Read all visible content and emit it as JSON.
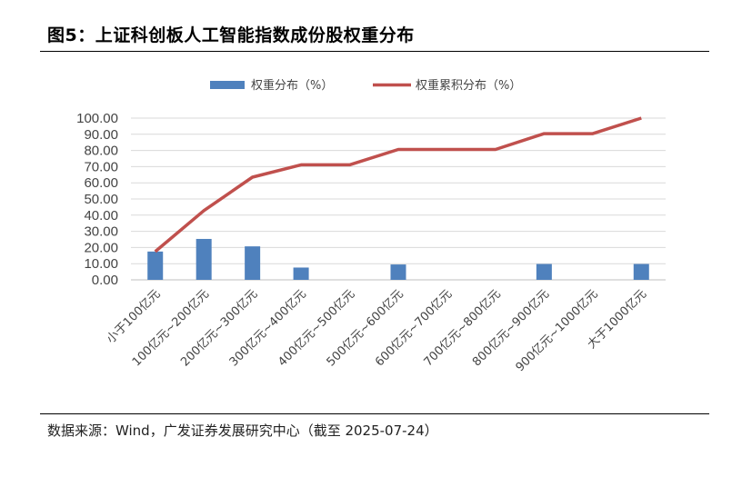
{
  "page": {
    "title": "图5：上证科创板人工智能指数成份股权重分布",
    "source": "数据来源：Wind，广发证券发展研究中心（截至 2025-07-24）"
  },
  "chart_data": {
    "type": "bar",
    "categories": [
      "小于100亿元",
      "100亿元~200亿元",
      "200亿元~300亿元",
      "300亿元~400亿元",
      "400亿元~500亿元",
      "500亿元~600亿元",
      "600亿元~700亿元",
      "700亿元~800亿元",
      "800亿元~900亿元",
      "900亿元~1000亿元",
      "大于1000亿元"
    ],
    "series": [
      {
        "name": "权重分布（%）",
        "type": "bar",
        "color": "#4F81BD",
        "values": [
          17.5,
          25.3,
          20.7,
          7.6,
          0,
          9.5,
          0,
          0,
          9.8,
          0,
          9.8
        ]
      },
      {
        "name": "权重累积分布（%）",
        "type": "line",
        "color": "#C0504D",
        "values": [
          17.5,
          42.8,
          63.5,
          71.1,
          71.1,
          80.6,
          80.6,
          80.6,
          90.4,
          90.4,
          100.0
        ]
      }
    ],
    "yticks": [
      "0.00",
      "10.00",
      "20.00",
      "30.00",
      "40.00",
      "50.00",
      "60.00",
      "70.00",
      "80.00",
      "90.00",
      "100.00"
    ],
    "ylim": [
      0,
      100
    ],
    "grid": true,
    "legend": "top"
  }
}
